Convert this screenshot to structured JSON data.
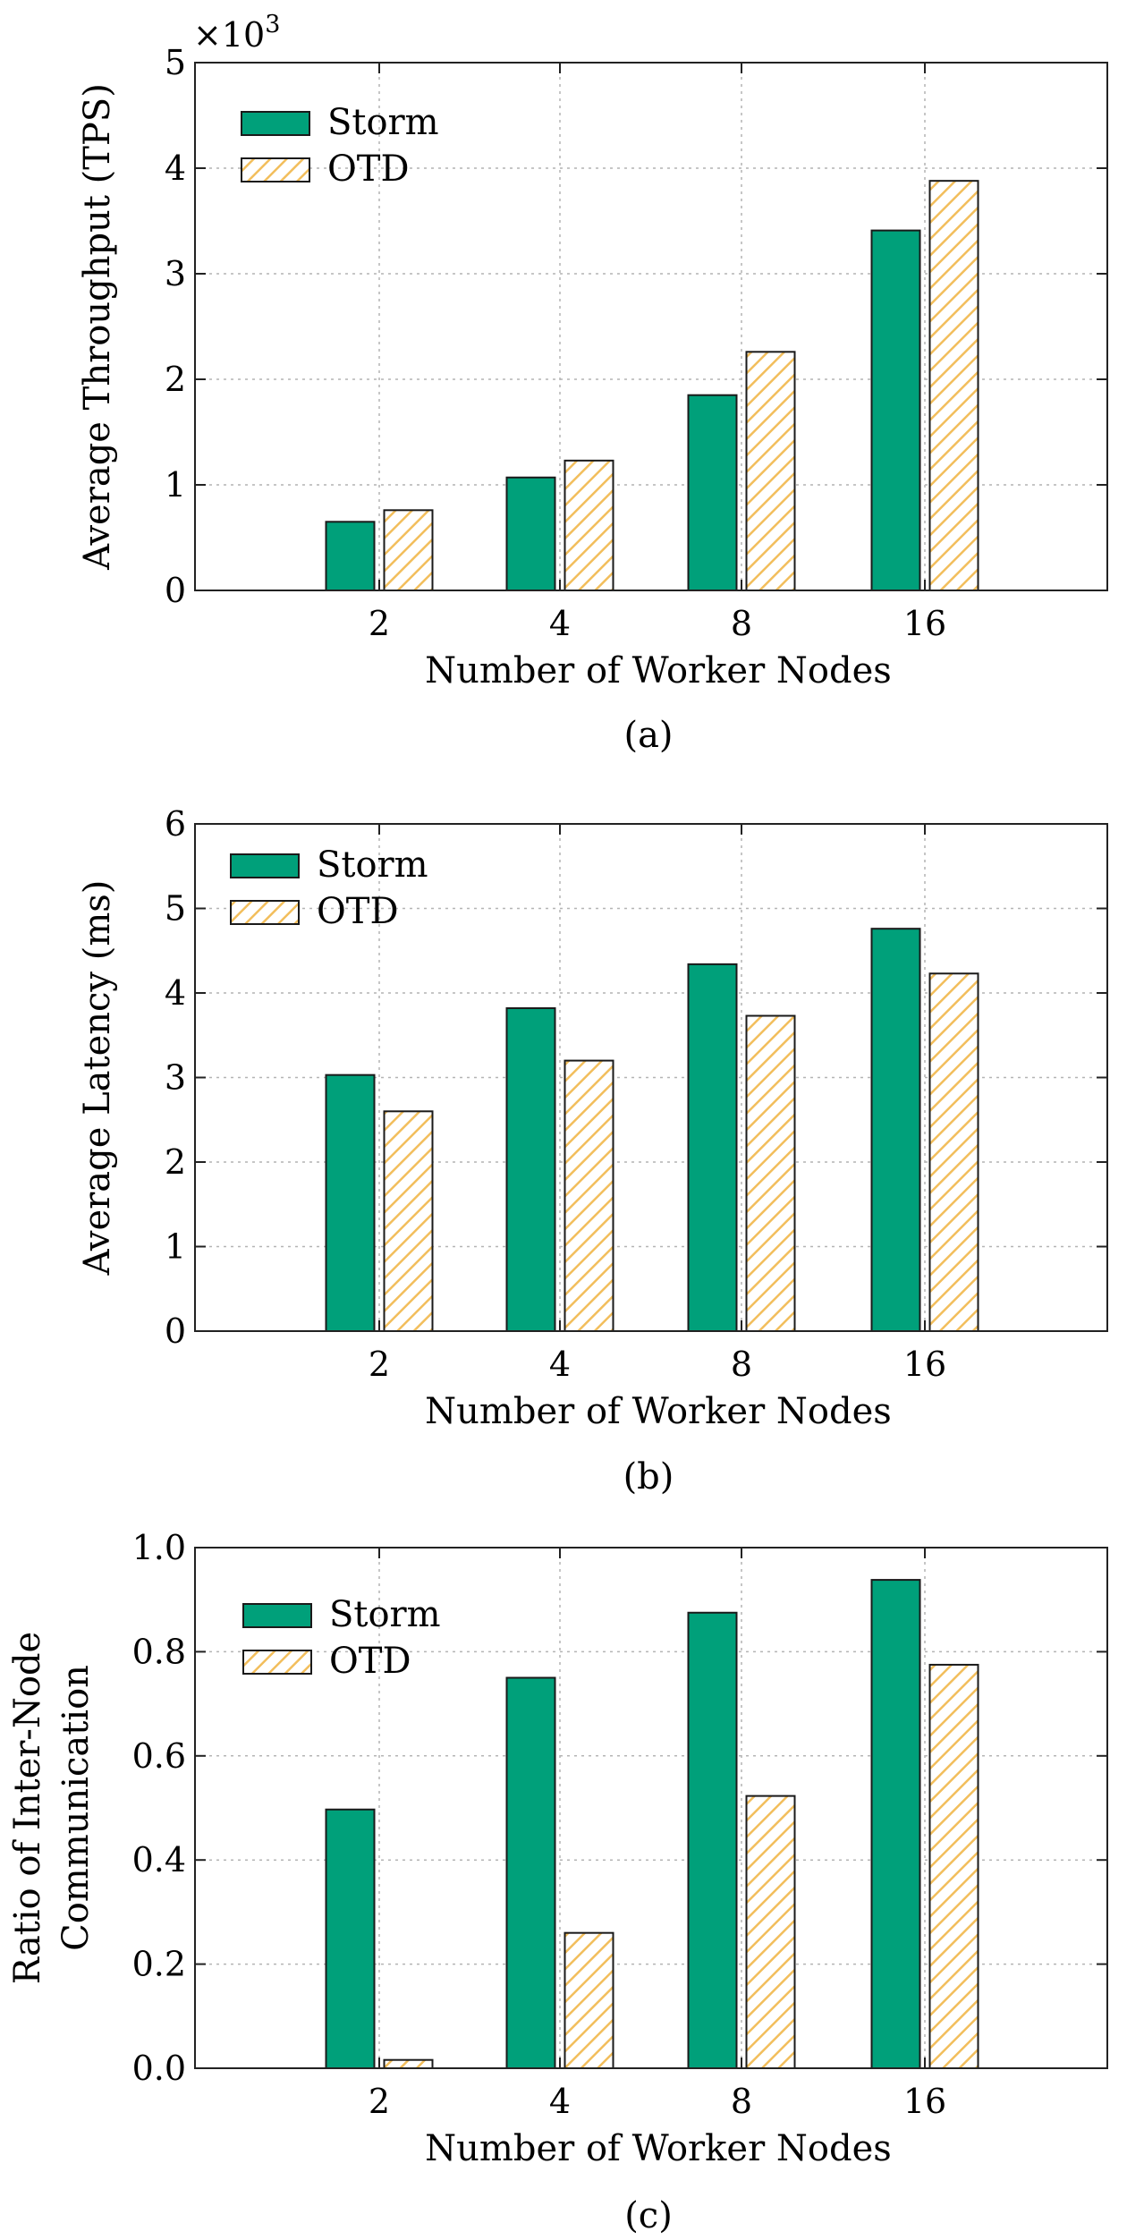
{
  "colors": {
    "storm": "#00A07A",
    "otd_stripe": "#F2BE5C",
    "grid": "#b4b4b4",
    "axis": "#222222"
  },
  "chart_data": [
    {
      "type": "bar",
      "categories": [
        "2",
        "4",
        "8",
        "16"
      ],
      "series": [
        {
          "name": "Storm",
          "values": [
            0.65,
            1.07,
            1.85,
            3.41
          ]
        },
        {
          "name": "OTD",
          "values": [
            0.76,
            1.23,
            2.26,
            3.88
          ]
        }
      ],
      "ylim": [
        0,
        5
      ],
      "yticks": [
        0,
        1,
        2,
        3,
        4,
        5
      ],
      "ytick_labels": [
        "0",
        "1",
        "2",
        "3",
        "4",
        "5"
      ],
      "scale_label": "×10",
      "scale_exp": "3",
      "xlabel": "Number of Worker Nodes",
      "ylabel": [
        "Average Throughput (TPS)"
      ],
      "caption": "(a)",
      "legend": "top-left",
      "grid": true
    },
    {
      "type": "bar",
      "categories": [
        "2",
        "4",
        "8",
        "16"
      ],
      "series": [
        {
          "name": "Storm",
          "values": [
            3.03,
            3.82,
            4.34,
            4.76
          ]
        },
        {
          "name": "OTD",
          "values": [
            2.6,
            3.2,
            3.73,
            4.23
          ]
        }
      ],
      "ylim": [
        0,
        6
      ],
      "yticks": [
        0,
        1,
        2,
        3,
        4,
        5,
        6
      ],
      "ytick_labels": [
        "0",
        "1",
        "2",
        "3",
        "4",
        "5",
        "6"
      ],
      "xlabel": "Number of Worker Nodes",
      "ylabel": [
        "Average Latency (ms)"
      ],
      "caption": "(b)",
      "legend": "top-left",
      "grid": true
    },
    {
      "type": "bar",
      "categories": [
        "2",
        "4",
        "8",
        "16"
      ],
      "series": [
        {
          "name": "Storm",
          "values": [
            0.497,
            0.75,
            0.875,
            0.938
          ]
        },
        {
          "name": "OTD",
          "values": [
            0.016,
            0.26,
            0.523,
            0.775
          ]
        }
      ],
      "ylim": [
        0,
        1.0
      ],
      "yticks": [
        0,
        0.2,
        0.4,
        0.6,
        0.8,
        1.0
      ],
      "ytick_labels": [
        "0.0",
        "0.2",
        "0.4",
        "0.6",
        "0.8",
        "1.0"
      ],
      "xlabel": "Number of Worker Nodes",
      "ylabel": [
        "Ratio of Inter-Node",
        "Communication"
      ],
      "caption": "(c)",
      "legend": "top-left",
      "grid": true
    }
  ]
}
